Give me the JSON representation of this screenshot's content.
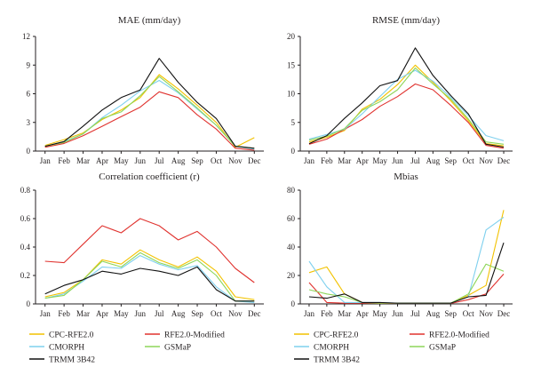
{
  "chart_data": [
    {
      "type": "line",
      "title": "MAE (mm/day)",
      "categories": [
        "Jan",
        "Feb",
        "Mar",
        "Apr",
        "May",
        "Jun",
        "Jul",
        "Aug",
        "Sep",
        "Oct",
        "Nov",
        "Dec"
      ],
      "ylim": [
        0,
        12
      ],
      "yticks": [
        "0",
        "3",
        "6",
        "9",
        "12"
      ],
      "series": [
        {
          "name": "CPC-RFE2.0",
          "values": [
            0.6,
            1.2,
            1.9,
            3.3,
            4.3,
            5.6,
            8.0,
            6.5,
            4.8,
            3.0,
            0.4,
            1.4
          ]
        },
        {
          "name": "RFE2.0-Modified",
          "values": [
            0.4,
            0.8,
            1.6,
            2.6,
            3.6,
            4.6,
            6.2,
            5.6,
            3.8,
            2.3,
            0.3,
            0.1
          ]
        },
        {
          "name": "CMORPH",
          "values": [
            0.5,
            1.0,
            1.8,
            3.5,
            4.8,
            6.3,
            7.4,
            6.1,
            4.4,
            2.7,
            0.5,
            0.2
          ]
        },
        {
          "name": "GSMaP",
          "values": [
            0.5,
            0.9,
            1.8,
            3.4,
            4.1,
            5.8,
            7.8,
            6.2,
            4.5,
            2.7,
            0.5,
            0.3
          ]
        },
        {
          "name": "TRMM 3B42",
          "values": [
            0.5,
            1.0,
            2.6,
            4.3,
            5.6,
            6.4,
            9.7,
            7.2,
            5.1,
            3.4,
            0.5,
            0.3
          ]
        }
      ]
    },
    {
      "type": "line",
      "title": "RMSE (mm/day)",
      "categories": [
        "Jan",
        "Feb",
        "Mar",
        "Apr",
        "May",
        "Jun",
        "Jul",
        "Aug",
        "Sep",
        "Oct",
        "Nov",
        "Dec"
      ],
      "ylim": [
        0,
        20
      ],
      "yticks": [
        "0",
        "5",
        "10",
        "15",
        "20"
      ],
      "series": [
        {
          "name": "CPC-RFE2.0",
          "values": [
            1.6,
            2.4,
            3.6,
            7.3,
            9.0,
            11.6,
            15.0,
            12.0,
            8.8,
            5.3,
            1.3,
            0.9
          ]
        },
        {
          "name": "RFE2.0-Modified",
          "values": [
            1.2,
            2.1,
            3.8,
            5.5,
            7.8,
            9.5,
            11.7,
            10.7,
            8.0,
            5.0,
            1.0,
            0.5
          ]
        },
        {
          "name": "CMORPH",
          "values": [
            2.1,
            2.9,
            3.8,
            6.5,
            9.5,
            12.5,
            14.1,
            12.2,
            9.4,
            6.2,
            2.7,
            1.8
          ]
        },
        {
          "name": "GSMaP",
          "values": [
            1.9,
            2.6,
            3.9,
            7.1,
            8.6,
            10.7,
            14.5,
            11.7,
            9.1,
            5.6,
            1.6,
            1.2
          ]
        },
        {
          "name": "TRMM 3B42",
          "values": [
            1.3,
            2.7,
            5.7,
            8.4,
            11.4,
            12.3,
            18.0,
            13.2,
            9.7,
            6.5,
            1.2,
            0.7
          ]
        }
      ]
    },
    {
      "type": "line",
      "title": "Correlation coefficient (r)",
      "categories": [
        "Jan",
        "Feb",
        "Mar",
        "Apr",
        "May",
        "Jun",
        "Jul",
        "Aug",
        "Sep",
        "Oct",
        "Nov",
        "Dec"
      ],
      "ylim": [
        0,
        0.8
      ],
      "yticks": [
        "0",
        "0.2",
        "0.4",
        "0.6",
        "0.8"
      ],
      "series": [
        {
          "name": "CPC-RFE2.0",
          "values": [
            0.05,
            0.08,
            0.17,
            0.31,
            0.28,
            0.38,
            0.31,
            0.26,
            0.33,
            0.23,
            0.05,
            0.03
          ]
        },
        {
          "name": "RFE2.0-Modified",
          "values": [
            0.3,
            0.29,
            0.42,
            0.55,
            0.5,
            0.6,
            0.55,
            0.45,
            0.51,
            0.4,
            0.25,
            0.15
          ]
        },
        {
          "name": "CMORPH",
          "values": [
            0.04,
            0.07,
            0.16,
            0.26,
            0.25,
            0.34,
            0.28,
            0.24,
            0.27,
            0.12,
            0.02,
            0.01
          ]
        },
        {
          "name": "GSMaP",
          "values": [
            0.04,
            0.06,
            0.17,
            0.3,
            0.26,
            0.36,
            0.29,
            0.25,
            0.31,
            0.2,
            0.02,
            0.02
          ]
        },
        {
          "name": "TRMM 3B42",
          "values": [
            0.07,
            0.13,
            0.17,
            0.23,
            0.21,
            0.25,
            0.23,
            0.2,
            0.26,
            0.1,
            0.02,
            0.02
          ]
        }
      ]
    },
    {
      "type": "line",
      "title": "Mbias",
      "categories": [
        "Jan",
        "Feb",
        "Mar",
        "Apr",
        "May",
        "Jun",
        "Jul",
        "Aug",
        "Sep",
        "Oct",
        "Nov",
        "Dec"
      ],
      "ylim": [
        0,
        80
      ],
      "yticks": [
        "0",
        "20",
        "40",
        "60",
        "80"
      ],
      "series": [
        {
          "name": "CPC-RFE2.0",
          "values": [
            22,
            26,
            7,
            1,
            0.5,
            0.5,
            0.5,
            0.5,
            0.5,
            6,
            13,
            66
          ]
        },
        {
          "name": "RFE2.0-Modified",
          "values": [
            15,
            1,
            0.5,
            0.5,
            0.5,
            0.3,
            0.3,
            0.3,
            0.3,
            3,
            7,
            21
          ]
        },
        {
          "name": "CMORPH",
          "values": [
            30,
            12,
            1,
            1,
            1,
            0.5,
            0.5,
            0.5,
            0.5,
            5,
            52,
            61
          ]
        },
        {
          "name": "GSMaP",
          "values": [
            10,
            7,
            5,
            1,
            0.5,
            0.5,
            0.5,
            0.5,
            0.5,
            7,
            28,
            23
          ]
        },
        {
          "name": "TRMM 3B42",
          "values": [
            5,
            4,
            7,
            1,
            1,
            0.5,
            0.5,
            0.5,
            0.5,
            5,
            6,
            43
          ]
        }
      ]
    }
  ],
  "colors": {
    "CPC-RFE2.0": "#f2c200",
    "RFE2.0-Modified": "#e0332f",
    "CMORPH": "#7fd0ee",
    "GSMaP": "#8ed65a",
    "TRMM 3B42": "#111111"
  },
  "legend": [
    {
      "name": "CPC-RFE2.0"
    },
    {
      "name": "RFE2.0-Modified"
    },
    {
      "name": "CMORPH"
    },
    {
      "name": "GSMaP"
    },
    {
      "name": "TRMM 3B42"
    }
  ]
}
